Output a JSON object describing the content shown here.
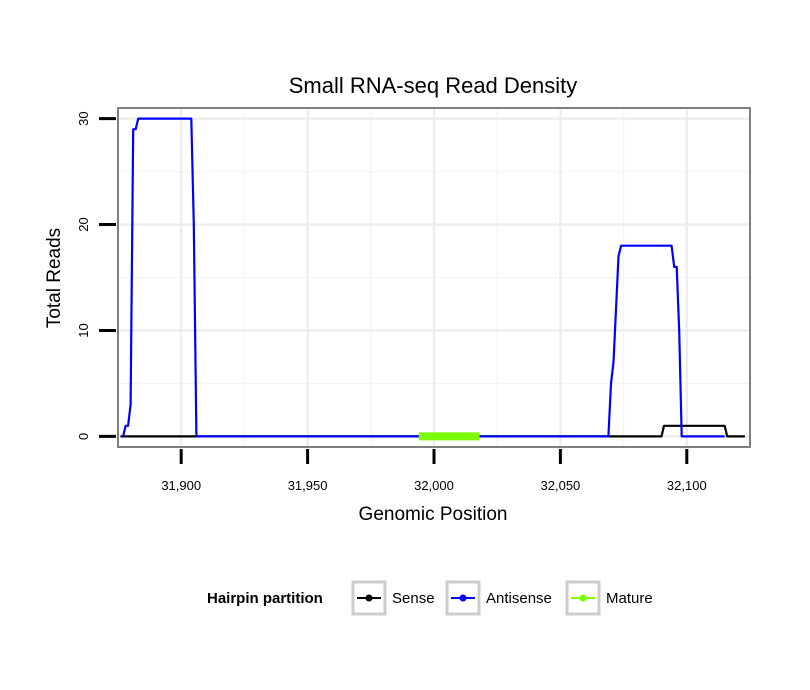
{
  "chart_data": {
    "type": "line",
    "title": "Small RNA-seq Read Density",
    "xlabel": "Genomic Position",
    "ylabel": "Total Reads",
    "xlim": [
      31875,
      32125
    ],
    "ylim": [
      -1,
      31
    ],
    "xticks": [
      31900,
      31950,
      32000,
      32050,
      32100
    ],
    "xtick_labels": [
      "31,900",
      "31,950",
      "32,000",
      "32,050",
      "32,100"
    ],
    "yticks": [
      0,
      10,
      20,
      30
    ],
    "ytick_labels": [
      "0",
      "10",
      "20",
      "30"
    ],
    "grid": true,
    "legend": {
      "title": "Hairpin partition",
      "placement": "bottom"
    },
    "series": [
      {
        "name": "Sense",
        "color": "#000000",
        "x": [
          31876,
          32090,
          32091,
          32115,
          32116,
          32123
        ],
        "y": [
          0,
          0,
          1,
          1,
          0,
          0
        ]
      },
      {
        "name": "Antisense",
        "color": "#0000ff",
        "x": [
          31877,
          31878,
          31879,
          31880,
          31881,
          31882,
          31883,
          31884,
          31904,
          31905,
          31906,
          32069,
          32070,
          32071,
          32072,
          32073,
          32074,
          32094,
          32095,
          32096,
          32097,
          32098,
          32115
        ],
        "y": [
          0,
          1,
          1,
          3,
          29,
          29,
          30,
          30,
          30,
          20,
          0,
          0,
          5,
          7,
          12,
          17,
          18,
          18,
          16,
          16,
          10,
          0,
          0
        ]
      },
      {
        "name": "Mature",
        "color": "#7cfc00",
        "x": [
          31994,
          32018
        ],
        "y": [
          0,
          0
        ]
      }
    ]
  }
}
